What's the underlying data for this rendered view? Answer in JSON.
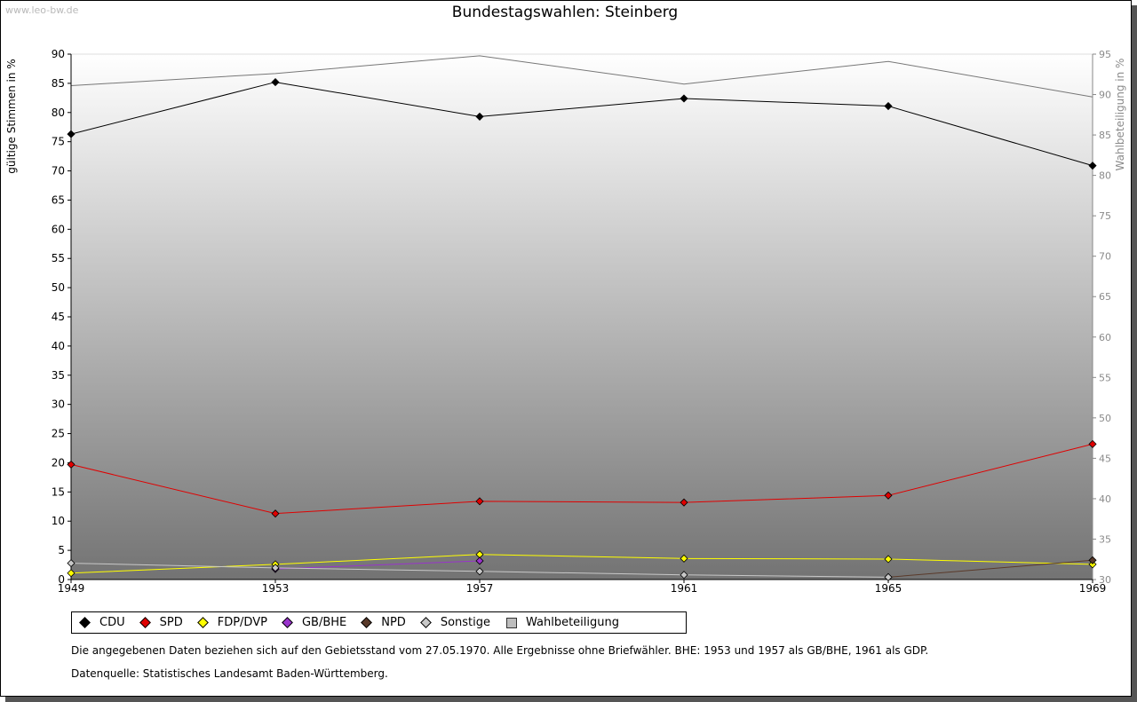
{
  "watermark": "www.leo-bw.de",
  "chart_data": {
    "type": "line",
    "title": "Bundestagswahlen: Steinberg",
    "ylabel": "gültige Stimmen in %",
    "y2label": "Wahlbeteiligung in %",
    "ylim": [
      0,
      90
    ],
    "y2lim": [
      30,
      95
    ],
    "x": [
      1949,
      1953,
      1957,
      1961,
      1965,
      1969
    ],
    "xticks": [
      "1949",
      "1953",
      "1957",
      "1961",
      "1965",
      "1969"
    ],
    "yticks": [
      "0",
      "5",
      "10",
      "15",
      "20",
      "25",
      "30",
      "35",
      "40",
      "45",
      "50",
      "55",
      "60",
      "65",
      "70",
      "75",
      "80",
      "85",
      "90"
    ],
    "y2ticks": [
      "30",
      "35",
      "40",
      "45",
      "50",
      "55",
      "60",
      "65",
      "70",
      "75",
      "80",
      "85",
      "90",
      "95"
    ],
    "series": [
      {
        "name": "CDU",
        "color": "#000000",
        "values": [
          76.3,
          85.2,
          79.3,
          82.4,
          81.1,
          70.9
        ]
      },
      {
        "name": "SPD",
        "color": "#e00000",
        "values": [
          19.7,
          11.3,
          13.4,
          13.2,
          14.4,
          23.2
        ]
      },
      {
        "name": "FDP/DVP",
        "color": "#ffff00",
        "values": [
          1.1,
          2.6,
          4.3,
          3.6,
          3.5,
          2.6
        ]
      },
      {
        "name": "GB/BHE",
        "color": "#9933cc",
        "values": [
          null,
          1.8,
          3.2,
          null,
          null,
          null
        ]
      },
      {
        "name": "NPD",
        "color": "#5a3a2a",
        "values": [
          null,
          null,
          null,
          null,
          0.4,
          3.3
        ]
      },
      {
        "name": "Sonstige",
        "color": "#c8c8c8",
        "values": [
          2.8,
          2.0,
          1.4,
          0.8,
          0.4,
          null
        ]
      }
    ],
    "turnout": {
      "name": "Wahlbeteiligung",
      "color": "#777777",
      "values": [
        91.1,
        92.6,
        94.8,
        91.3,
        94.1,
        89.7
      ]
    },
    "legend_position": "bottom"
  },
  "notes": {
    "line1": "Die angegebenen Daten beziehen sich auf den Gebietsstand vom 27.05.1970. Alle Ergebnisse ohne Briefwähler. BHE: 1953 und 1957 als GB/BHE, 1961 als GDP.",
    "line2": "Datenquelle: Statistisches Landesamt Baden-Württemberg."
  }
}
